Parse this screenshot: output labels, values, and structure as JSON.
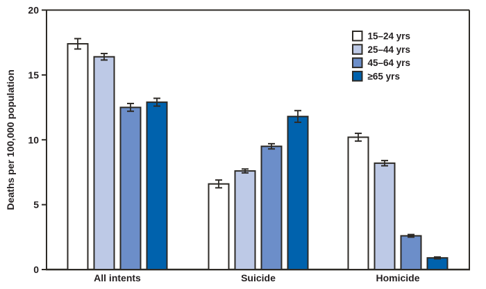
{
  "chart_data": {
    "type": "bar",
    "title": "",
    "ylabel": "Deaths per 100,000 population",
    "xlabel": "",
    "ylim": [
      0,
      20
    ],
    "yticks": [
      0,
      5,
      10,
      15,
      20
    ],
    "grid": false,
    "legend_position": "top-right",
    "categories": [
      "All intents",
      "Suicide",
      "Homicide"
    ],
    "series": [
      {
        "name": "15–24 yrs",
        "color": "#ffffff",
        "values": [
          17.4,
          6.6,
          10.2
        ],
        "errors": [
          0.4,
          0.3,
          0.3
        ]
      },
      {
        "name": "25–44 yrs",
        "color": "#bdc9e6",
        "values": [
          16.4,
          7.6,
          8.2
        ],
        "errors": [
          0.25,
          0.15,
          0.2
        ]
      },
      {
        "name": "45–64 yrs",
        "color": "#6c8ec9",
        "values": [
          12.5,
          9.5,
          2.6
        ],
        "errors": [
          0.3,
          0.2,
          0.1
        ]
      },
      {
        "name": "≥65 yrs",
        "color": "#0062ad",
        "values": [
          12.9,
          11.8,
          0.9
        ],
        "errors": [
          0.3,
          0.45,
          0.07
        ]
      }
    ],
    "colors": {
      "axis": "#2d2a26",
      "text": "#231f20",
      "background": "#ffffff"
    }
  }
}
